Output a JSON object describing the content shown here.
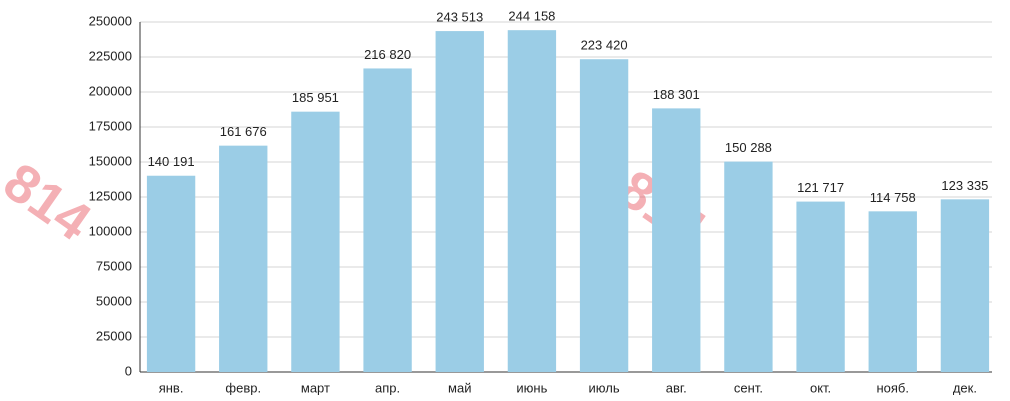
{
  "chart_data": {
    "type": "bar",
    "categories": [
      "янв.",
      "февр.",
      "март",
      "апр.",
      "май",
      "июнь",
      "июль",
      "авг.",
      "сент.",
      "окт.",
      "нояб.",
      "дек."
    ],
    "values": [
      140191,
      161676,
      185951,
      216820,
      243513,
      244158,
      223420,
      188301,
      150288,
      121717,
      114758,
      123335
    ],
    "value_labels": [
      "140 191",
      "161 676",
      "185 951",
      "216 820",
      "243 513",
      "244 158",
      "223 420",
      "188 301",
      "150 288",
      "121 717",
      "114 758",
      "123 335"
    ],
    "color": "#9bcde6",
    "ylim": [
      0,
      250000
    ],
    "yticks": [
      0,
      25000,
      50000,
      75000,
      100000,
      125000,
      150000,
      175000,
      200000,
      225000,
      250000
    ],
    "grid": true
  },
  "watermark": "814"
}
